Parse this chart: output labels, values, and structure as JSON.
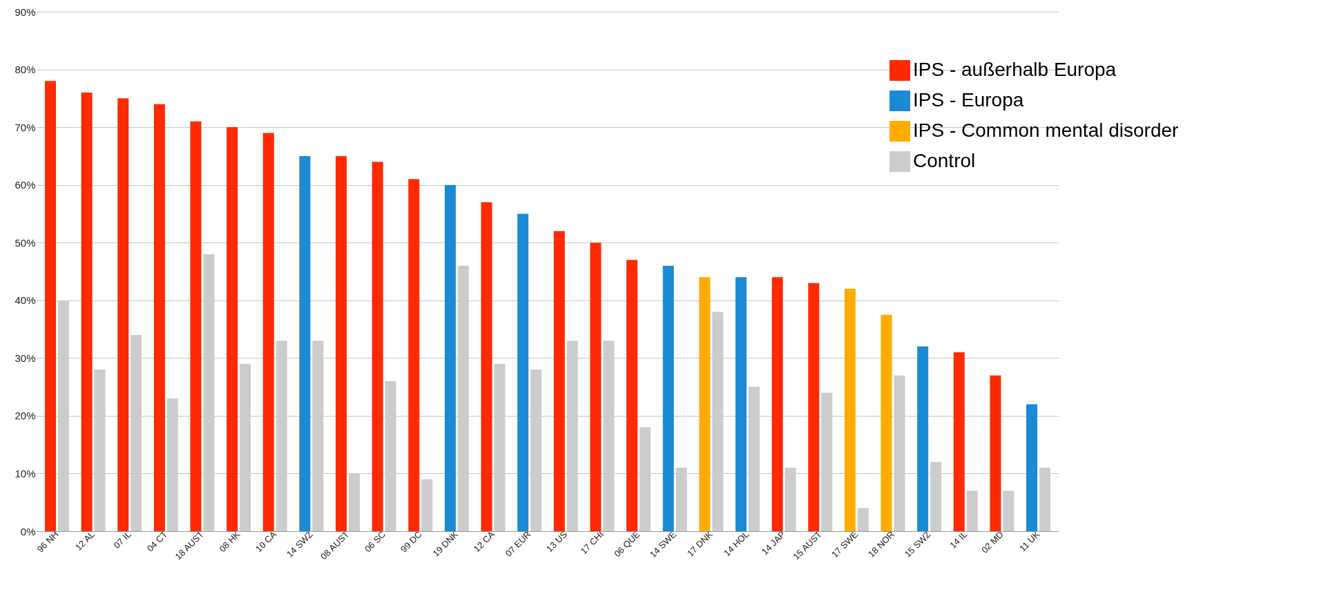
{
  "chart_data": {
    "type": "bar",
    "categories": [
      "96 NH",
      "12 AL",
      "07 IL",
      "04 CT",
      "18 AUST",
      "08 HK",
      "10 CA",
      "14 SWZ",
      "08 AUST",
      "06 SC",
      "99 DC",
      "19 DNK",
      "12 CA",
      "07 EUR",
      "13 US",
      "17 CHI",
      "06 QUE",
      "14 SWE",
      "17 DNK",
      "14 HOL",
      "14 JAP",
      "15 AUST",
      "17 SWE",
      "18 NOR",
      "15 SWZ",
      "14 IL",
      "02 MD",
      "11 UK"
    ],
    "series": [
      {
        "name": "IPS - außerhalb Europa",
        "color": "#ff2a00",
        "values": [
          78,
          76,
          75,
          74,
          71,
          70,
          69,
          null,
          65,
          64,
          61,
          null,
          57,
          null,
          52,
          50,
          47,
          null,
          null,
          null,
          44,
          43,
          null,
          null,
          null,
          31,
          27,
          null
        ]
      },
      {
        "name": "IPS - Europa",
        "color": "#1a8ad4",
        "values": [
          null,
          null,
          null,
          null,
          null,
          null,
          null,
          65,
          null,
          null,
          null,
          60,
          null,
          55,
          null,
          null,
          null,
          46,
          null,
          44,
          null,
          null,
          null,
          null,
          32,
          null,
          null,
          22
        ]
      },
      {
        "name": "IPS - Common mental disorder",
        "color": "#ffab00",
        "values": [
          null,
          null,
          null,
          null,
          null,
          null,
          null,
          null,
          null,
          null,
          null,
          null,
          null,
          null,
          null,
          null,
          null,
          null,
          44,
          null,
          null,
          null,
          42,
          37.5,
          null,
          null,
          null,
          null
        ]
      },
      {
        "name": "Control",
        "color": "#cccccc",
        "values": [
          40,
          28,
          34,
          23,
          48,
          29,
          33,
          33,
          10,
          26,
          9,
          46,
          29,
          28,
          33,
          33,
          18,
          11,
          38,
          25,
          11,
          24,
          4,
          27,
          12,
          7,
          7,
          11
        ]
      }
    ],
    "ylim": [
      0,
      90
    ],
    "yticks": [
      {
        "value": 0,
        "label": "0%"
      },
      {
        "value": 10,
        "label": "10%"
      },
      {
        "value": 20,
        "label": "20%"
      },
      {
        "value": 30,
        "label": "30%"
      },
      {
        "value": 40,
        "label": "40%"
      },
      {
        "value": 50,
        "label": "50%"
      },
      {
        "value": 60,
        "label": "60%"
      },
      {
        "value": 70,
        "label": "70%"
      },
      {
        "value": 80,
        "label": "80%"
      },
      {
        "value": 90,
        "label": "90%"
      }
    ],
    "grid": "y",
    "legend": "top right"
  }
}
